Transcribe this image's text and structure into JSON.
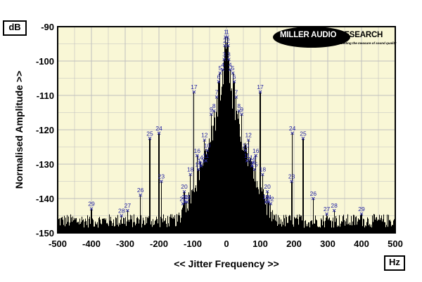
{
  "chart_data": {
    "type": "line",
    "ylabel": "Normalised Amplitude >>",
    "xlabel": "<< Jitter Frequency >>",
    "y_unit": "dB",
    "x_unit": "Hz",
    "xlim": [
      -500,
      500
    ],
    "ylim": [
      -150,
      -90
    ],
    "x_ticks": [
      -500,
      -400,
      -300,
      -200,
      -100,
      0,
      100,
      200,
      300,
      400,
      500
    ],
    "x_tick_labels": [
      "-500",
      "-400",
      "-300",
      "-200",
      "-100",
      "0",
      "100",
      "200",
      "300",
      "400",
      "500"
    ],
    "y_ticks": [
      -150,
      -140,
      -130,
      -120,
      -110,
      -100,
      -90
    ],
    "y_tick_labels": [
      "-150",
      "-140",
      "-130",
      "-120",
      "-110",
      "-100",
      "-90"
    ],
    "grid": true,
    "noise_floor_db": -147,
    "markers": [
      {
        "label": "1",
        "x": -3,
        "y": -93
      },
      {
        "label": "1",
        "x": 3,
        "y": -93
      },
      {
        "label": "2",
        "x": -5,
        "y": -95.5
      },
      {
        "label": "2",
        "x": 5,
        "y": -95.5
      },
      {
        "label": "3",
        "x": -7,
        "y": -99.5
      },
      {
        "label": "3",
        "x": 7,
        "y": -99.5
      },
      {
        "label": "4",
        "x": -11,
        "y": -102.5
      },
      {
        "label": "4",
        "x": 11,
        "y": -102.5
      },
      {
        "label": "5",
        "x": -19,
        "y": -103.5
      },
      {
        "label": "5",
        "x": 19,
        "y": -103.5
      },
      {
        "label": "6",
        "x": -23,
        "y": -106
      },
      {
        "label": "6",
        "x": 23,
        "y": -106
      },
      {
        "label": "7",
        "x": -29,
        "y": -110.5
      },
      {
        "label": "7",
        "x": 29,
        "y": -110.5
      },
      {
        "label": "8",
        "x": -37,
        "y": -114.5
      },
      {
        "label": "8",
        "x": 37,
        "y": -114.5
      },
      {
        "label": "9",
        "x": -45,
        "y": -115.5
      },
      {
        "label": "9",
        "x": 45,
        "y": -115.5
      },
      {
        "label": "10",
        "x": -57,
        "y": -126
      },
      {
        "label": "10",
        "x": 57,
        "y": -126
      },
      {
        "label": "11",
        "x": -61,
        "y": -129
      },
      {
        "label": "11",
        "x": 61,
        "y": -129
      },
      {
        "label": "12",
        "x": -65,
        "y": -123
      },
      {
        "label": "12",
        "x": 65,
        "y": -123
      },
      {
        "label": "13",
        "x": -75,
        "y": -130.5
      },
      {
        "label": "13",
        "x": 75,
        "y": -130.5
      },
      {
        "label": "14",
        "x": -79,
        "y": -129.5
      },
      {
        "label": "14",
        "x": 79,
        "y": -129.5
      },
      {
        "label": "15",
        "x": -83,
        "y": -131.5
      },
      {
        "label": "15",
        "x": 83,
        "y": -131.5
      },
      {
        "label": "16",
        "x": -87,
        "y": -127.5
      },
      {
        "label": "16",
        "x": 87,
        "y": -127.5
      },
      {
        "label": "17",
        "x": -96,
        "y": -109
      },
      {
        "label": "17",
        "x": 100,
        "y": -109
      },
      {
        "label": "18",
        "x": -107,
        "y": -133
      },
      {
        "label": "18",
        "x": 107,
        "y": -133
      },
      {
        "label": "19",
        "x": -117,
        "y": -141
      },
      {
        "label": "19",
        "x": 117,
        "y": -141
      },
      {
        "label": "20",
        "x": -125,
        "y": -138
      },
      {
        "label": "20",
        "x": 121,
        "y": -138
      },
      {
        "label": "21",
        "x": -123,
        "y": -141
      },
      {
        "label": "21",
        "x": 125,
        "y": -141
      },
      {
        "label": "22",
        "x": -129,
        "y": -141.5
      },
      {
        "label": "22",
        "x": 131,
        "y": -141.5
      },
      {
        "label": "23",
        "x": -193,
        "y": -135
      },
      {
        "label": "23",
        "x": 193,
        "y": -135
      },
      {
        "label": "24",
        "x": -200,
        "y": -121
      },
      {
        "label": "24",
        "x": 195,
        "y": -121
      },
      {
        "label": "25",
        "x": -227,
        "y": -122.5
      },
      {
        "label": "25",
        "x": 227,
        "y": -122.5
      },
      {
        "label": "26",
        "x": -255,
        "y": -139
      },
      {
        "label": "26",
        "x": 257,
        "y": -140
      },
      {
        "label": "27",
        "x": -293,
        "y": -143.5
      },
      {
        "label": "27",
        "x": 297,
        "y": -144.5
      },
      {
        "label": "28",
        "x": -311,
        "y": -145
      },
      {
        "label": "28",
        "x": 319,
        "y": -143.5
      },
      {
        "label": "29",
        "x": -400,
        "y": -143
      },
      {
        "label": "29",
        "x": 400,
        "y": -144.5
      }
    ]
  },
  "units": {
    "y": "dB",
    "x": "Hz"
  },
  "logo": {
    "brand_white": "MILLER AUDIO ",
    "brand_black": "RESEARCH",
    "tagline": "Getting the measure of sound quality"
  },
  "colors": {
    "plot_background": "#f9f7d6",
    "grid": "#bfbfbf",
    "trace": "#000000",
    "marker": "#3030a0",
    "marker_label": "#1a1aa0"
  }
}
